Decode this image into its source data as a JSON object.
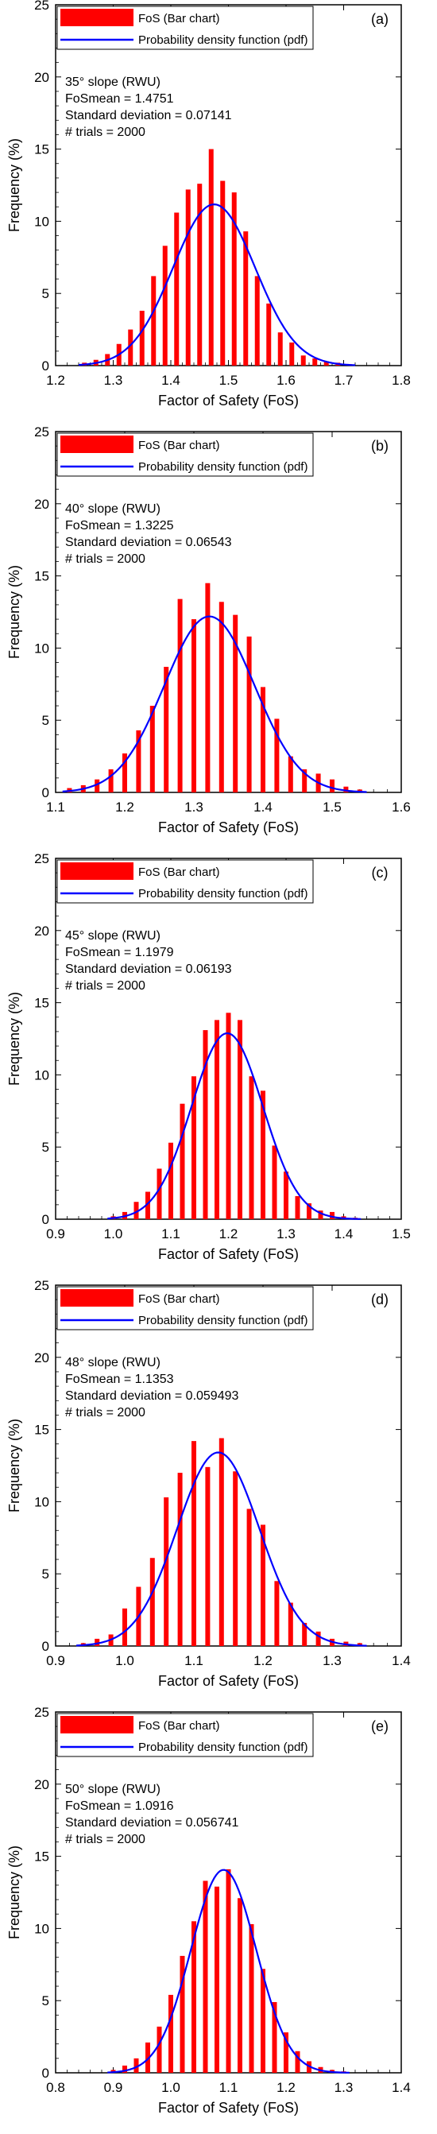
{
  "legend": {
    "bar_label": "FoS (Bar chart)",
    "pdf_label": "Probability density function (pdf)"
  },
  "colors": {
    "bar": "#ff0000",
    "pdf_line": "#0000ff",
    "axis": "#000000"
  },
  "chart_data": [
    {
      "type": "bar",
      "panel_label": "(a)",
      "info": [
        "35° slope (RWU)",
        "FoSmean = 1.4751",
        "Standard deviation = 0.07141",
        "# trials = 2000"
      ],
      "xlabel": "Factor of Safety (FoS)",
      "ylabel": "Frequency (%)",
      "xlim": [
        1.2,
        1.8
      ],
      "xticks": [
        "1.2",
        "1.3",
        "1.4",
        "1.5",
        "1.6",
        "1.7",
        "1.8"
      ],
      "ylim": [
        0,
        25
      ],
      "yticks": [
        "0",
        "5",
        "10",
        "15",
        "20",
        "25"
      ],
      "mean": 1.4751,
      "sd": 0.07141,
      "x": [
        1.25,
        1.27,
        1.29,
        1.31,
        1.33,
        1.35,
        1.37,
        1.39,
        1.41,
        1.43,
        1.45,
        1.47,
        1.49,
        1.51,
        1.53,
        1.55,
        1.57,
        1.59,
        1.61,
        1.63,
        1.65,
        1.67,
        1.69,
        1.71
      ],
      "series": [
        {
          "name": "FoS (Bar chart)",
          "values": [
            0.2,
            0.4,
            0.8,
            1.5,
            2.5,
            3.8,
            6.2,
            8.3,
            10.6,
            12.2,
            12.6,
            15.0,
            12.8,
            12.0,
            9.3,
            6.2,
            4.3,
            2.3,
            1.6,
            0.7,
            0.5,
            0.3,
            0.2,
            0.1
          ]
        }
      ]
    },
    {
      "type": "bar",
      "panel_label": "(b)",
      "info": [
        "40° slope (RWU)",
        "FoSmean = 1.3225",
        "Standard deviation = 0.06543",
        "# trials = 2000"
      ],
      "xlabel": "Factor of Safety (FoS)",
      "ylabel": "Frequency (%)",
      "xlim": [
        1.1,
        1.6
      ],
      "xticks": [
        "1.1",
        "1.2",
        "1.3",
        "1.4",
        "1.5",
        "1.6"
      ],
      "ylim": [
        0,
        25
      ],
      "yticks": [
        "0",
        "5",
        "10",
        "15",
        "20",
        "25"
      ],
      "mean": 1.3225,
      "sd": 0.06543,
      "x": [
        1.12,
        1.14,
        1.16,
        1.18,
        1.2,
        1.22,
        1.24,
        1.26,
        1.28,
        1.3,
        1.32,
        1.34,
        1.36,
        1.38,
        1.4,
        1.42,
        1.44,
        1.46,
        1.48,
        1.5,
        1.52,
        1.54
      ],
      "series": [
        {
          "name": "FoS (Bar chart)",
          "values": [
            0.3,
            0.5,
            0.9,
            1.6,
            2.7,
            4.3,
            6.0,
            8.7,
            13.4,
            12.0,
            14.5,
            13.2,
            12.3,
            10.8,
            7.3,
            5.1,
            2.5,
            1.6,
            1.3,
            0.9,
            0.4,
            0.2
          ]
        }
      ]
    },
    {
      "type": "bar",
      "panel_label": "(c)",
      "info": [
        "45° slope (RWU)",
        "FoSmean = 1.1979",
        "Standard deviation = 0.06193",
        "# trials = 2000"
      ],
      "xlabel": "Factor of Safety (FoS)",
      "ylabel": "Frequency (%)",
      "xlim": [
        0.9,
        1.5
      ],
      "xticks": [
        "0.9",
        "1.0",
        "1.1",
        "1.2",
        "1.3",
        "1.4",
        "1.5"
      ],
      "ylim": [
        0,
        25
      ],
      "yticks": [
        "0",
        "5",
        "10",
        "15",
        "20",
        "25"
      ],
      "mean": 1.1979,
      "sd": 0.06193,
      "x": [
        1.0,
        1.02,
        1.04,
        1.06,
        1.08,
        1.1,
        1.12,
        1.14,
        1.16,
        1.18,
        1.2,
        1.22,
        1.24,
        1.26,
        1.28,
        1.3,
        1.32,
        1.34,
        1.36,
        1.38,
        1.4,
        1.42
      ],
      "series": [
        {
          "name": "FoS (Bar chart)",
          "values": [
            0.2,
            0.5,
            1.2,
            1.9,
            3.5,
            5.3,
            8.0,
            9.9,
            13.1,
            13.8,
            14.3,
            13.8,
            9.9,
            8.9,
            5.1,
            3.3,
            1.6,
            1.1,
            0.6,
            0.5,
            0.2,
            0.1
          ]
        }
      ]
    },
    {
      "type": "bar",
      "panel_label": "(d)",
      "info": [
        "48° slope (RWU)",
        "FoSmean = 1.1353",
        "Standard deviation = 0.059493",
        "# trials = 2000"
      ],
      "xlabel": "Factor of Safety (FoS)",
      "ylabel": "Frequency (%)",
      "xlim": [
        0.9,
        1.4
      ],
      "xticks": [
        "0.9",
        "1.0",
        "1.1",
        "1.2",
        "1.3",
        "1.4"
      ],
      "ylim": [
        0,
        25
      ],
      "yticks": [
        "0",
        "5",
        "10",
        "15",
        "20",
        "25"
      ],
      "mean": 1.1353,
      "sd": 0.059493,
      "x": [
        0.94,
        0.96,
        0.98,
        1.0,
        1.02,
        1.04,
        1.06,
        1.08,
        1.1,
        1.12,
        1.14,
        1.16,
        1.18,
        1.2,
        1.22,
        1.24,
        1.26,
        1.28,
        1.3,
        1.32,
        1.34
      ],
      "series": [
        {
          "name": "FoS (Bar chart)",
          "values": [
            0.2,
            0.5,
            0.8,
            2.6,
            4.1,
            6.1,
            10.3,
            12.0,
            14.2,
            12.4,
            14.4,
            12.1,
            9.5,
            8.4,
            4.5,
            3.0,
            1.6,
            1.0,
            0.5,
            0.3,
            0.2
          ]
        }
      ]
    },
    {
      "type": "bar",
      "panel_label": "(e)",
      "info": [
        "50° slope (RWU)",
        "FoSmean = 1.0916",
        "Standard deviation = 0.056741",
        "# trials = 2000"
      ],
      "xlabel": "Factor of Safety (FoS)",
      "ylabel": "Frequency (%)",
      "xlim": [
        0.8,
        1.4
      ],
      "xticks": [
        "0.8",
        "0.9",
        "1.0",
        "1.1",
        "1.2",
        "1.3",
        "1.4"
      ],
      "ylim": [
        0,
        25
      ],
      "yticks": [
        "0",
        "5",
        "10",
        "15",
        "20",
        "25"
      ],
      "mean": 1.0916,
      "sd": 0.056741,
      "x": [
        0.9,
        0.92,
        0.94,
        0.96,
        0.98,
        1.0,
        1.02,
        1.04,
        1.06,
        1.08,
        1.1,
        1.12,
        1.14,
        1.16,
        1.18,
        1.2,
        1.22,
        1.24,
        1.26,
        1.28,
        1.3
      ],
      "series": [
        {
          "name": "FoS (Bar chart)",
          "values": [
            0.2,
            0.5,
            1.0,
            2.1,
            3.2,
            5.4,
            8.1,
            10.5,
            13.3,
            12.9,
            14.1,
            12.1,
            10.3,
            7.2,
            4.9,
            2.8,
            1.5,
            0.8,
            0.4,
            0.2,
            0.1
          ]
        }
      ]
    }
  ]
}
